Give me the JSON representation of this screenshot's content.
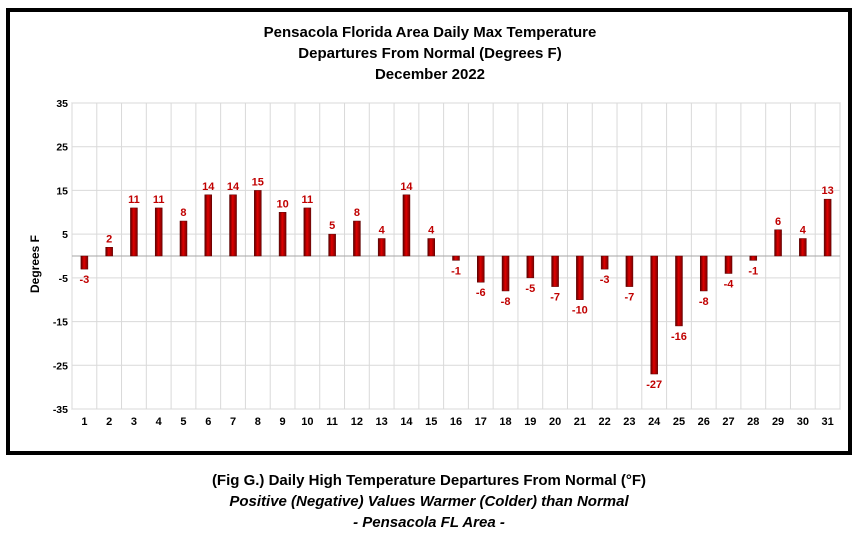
{
  "chart_data": {
    "type": "bar",
    "title": [
      "Pensacola Florida Area Daily Max Temperature",
      "Departures From Normal (Degrees F)",
      "December 2022"
    ],
    "xlabel": "",
    "ylabel": "Degrees F",
    "ylim": [
      -35,
      35
    ],
    "yticks": [
      35,
      25,
      15,
      5,
      -5,
      -15,
      -25,
      -35
    ],
    "grid": true,
    "categories": [
      "1",
      "2",
      "3",
      "4",
      "5",
      "6",
      "7",
      "8",
      "9",
      "10",
      "11",
      "12",
      "13",
      "14",
      "15",
      "16",
      "17",
      "18",
      "19",
      "20",
      "21",
      "22",
      "23",
      "24",
      "25",
      "26",
      "27",
      "28",
      "29",
      "30",
      "31"
    ],
    "values": [
      -3,
      2,
      11,
      11,
      8,
      14,
      14,
      15,
      10,
      11,
      5,
      8,
      4,
      14,
      4,
      -1,
      -6,
      -8,
      -5,
      -7,
      -10,
      -3,
      -7,
      -27,
      -16,
      -8,
      -4,
      -1,
      6,
      4,
      13
    ],
    "bar_color": "#c00000",
    "label_color": "#c00000"
  },
  "caption": {
    "line1": "(Fig G.) Daily High Temperature Departures From Normal (°F)",
    "line2": "Positive (Negative) Values Warmer (Colder) than Normal",
    "line3": "- Pensacola FL Area -"
  }
}
